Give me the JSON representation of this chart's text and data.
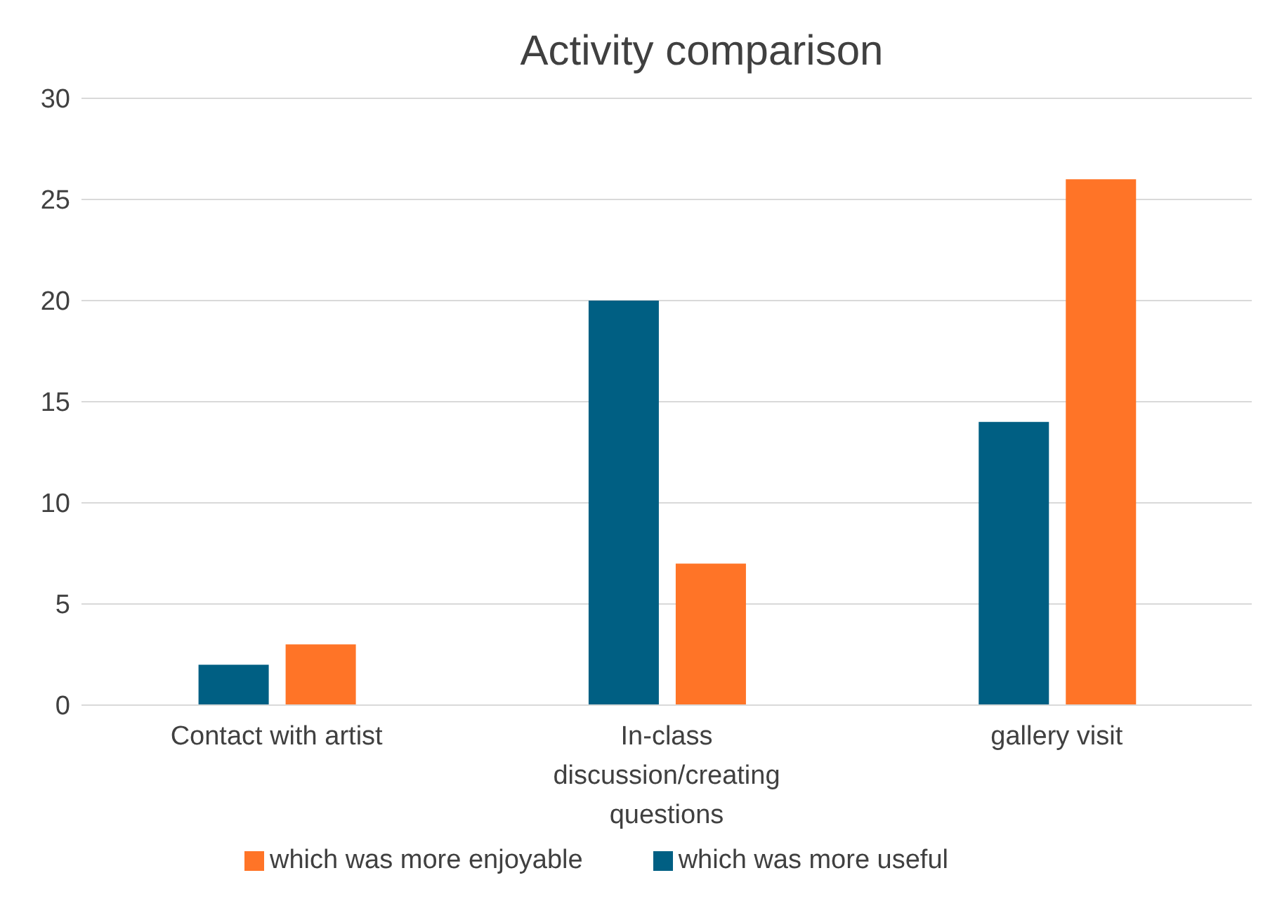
{
  "chart_data": {
    "type": "bar",
    "title": "Activity comparison",
    "categories": [
      "Contact with artist",
      "In-class discussion/creating questions",
      "gallery visit"
    ],
    "series": [
      {
        "name": "which was more useful",
        "color": "#005f83",
        "values": [
          2,
          20,
          14
        ]
      },
      {
        "name": "which was more enjoyable",
        "color": "#ff7427",
        "values": [
          3,
          7,
          26
        ]
      }
    ],
    "ylim": [
      0,
      30
    ],
    "yticks": [
      0,
      5,
      10,
      15,
      20,
      25,
      30
    ],
    "grid": "y",
    "legend": "bottom"
  }
}
